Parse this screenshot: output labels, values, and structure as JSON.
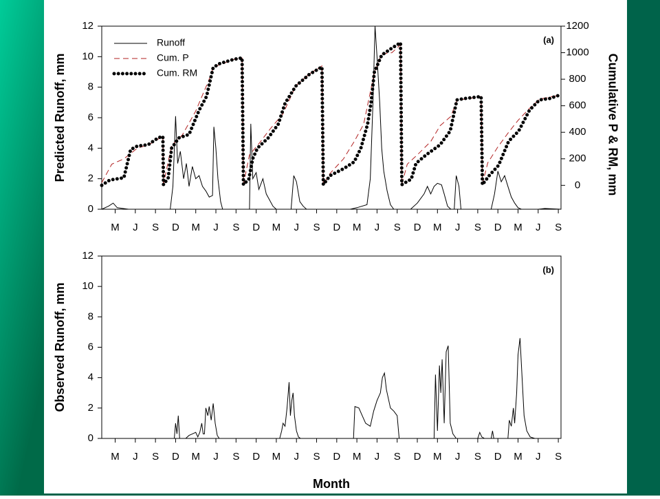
{
  "chart_data": [
    {
      "type": "line",
      "ylabel": "Predicted Runoff, mm",
      "y2label": "Cumulative P & RM, mm",
      "annotation": "(a)",
      "xlim": [
        0,
        68.4
      ],
      "xticks": [
        {
          "value": 2,
          "label": "M"
        },
        {
          "value": 5,
          "label": "J"
        },
        {
          "value": 8,
          "label": "S"
        },
        {
          "value": 11,
          "label": "D"
        },
        {
          "value": 14,
          "label": "M"
        },
        {
          "value": 17,
          "label": "J"
        },
        {
          "value": 20,
          "label": "S"
        },
        {
          "value": 23,
          "label": "D"
        },
        {
          "value": 26,
          "label": "M"
        },
        {
          "value": 29,
          "label": "J"
        },
        {
          "value": 32,
          "label": "S"
        },
        {
          "value": 35,
          "label": "D"
        },
        {
          "value": 38,
          "label": "M"
        },
        {
          "value": 41,
          "label": "J"
        },
        {
          "value": 44,
          "label": "S"
        },
        {
          "value": 47,
          "label": "D"
        },
        {
          "value": 50,
          "label": "M"
        },
        {
          "value": 53,
          "label": "J"
        },
        {
          "value": 56,
          "label": "S"
        },
        {
          "value": 59,
          "label": "D"
        },
        {
          "value": 62,
          "label": "M"
        },
        {
          "value": 65,
          "label": "J"
        },
        {
          "value": 68,
          "label": "S"
        }
      ],
      "ylim": [
        0,
        12
      ],
      "yticks": [
        0,
        2,
        4,
        6,
        8,
        10,
        12
      ],
      "y2lim": [
        -180,
        1200
      ],
      "y2ticks": [
        0,
        200,
        400,
        600,
        800,
        1000,
        1200
      ],
      "legend": "upper left",
      "series": [
        {
          "name": "Runoff",
          "color": "#000000",
          "style": "solid",
          "x": [
            0,
            1,
            1.7,
            2.3,
            4,
            10.2,
            10.6,
            11,
            11.3,
            11.7,
            12.2,
            12.6,
            13,
            13.5,
            14,
            14.5,
            15,
            15.5,
            16,
            16.5,
            16.7,
            17,
            17.3,
            17.7,
            18,
            22,
            22.2,
            22.5,
            23,
            23.4,
            24,
            24.5,
            25,
            25.5,
            26,
            28.2,
            28.6,
            29,
            29.5,
            30,
            30.5,
            37,
            38,
            39.5,
            40,
            40.4,
            40.7,
            41,
            41.4,
            41.7,
            42,
            42.5,
            43,
            43.5,
            46,
            47,
            48,
            48.5,
            49,
            49.5,
            50,
            50.6,
            51,
            51.5,
            52,
            52.5,
            52.8,
            53.2,
            53.5,
            58,
            58.5,
            59,
            59.5,
            60,
            60.5,
            61,
            61.5,
            62,
            62.5,
            65,
            66,
            68.4
          ],
          "values": [
            0,
            0.2,
            0.4,
            0.1,
            0,
            0,
            1.5,
            6.1,
            3,
            3.8,
            2,
            3,
            1.5,
            2.8,
            2,
            2.2,
            1.5,
            1.2,
            0.8,
            0.9,
            5.4,
            4,
            2,
            0.5,
            0,
            0,
            5.6,
            2,
            2.4,
            1.3,
            2,
            1,
            0.6,
            0.2,
            0,
            0,
            2.2,
            1.8,
            0.5,
            0.2,
            0,
            0,
            0.1,
            0.3,
            2,
            7,
            12,
            10,
            7,
            4,
            2.5,
            1.2,
            0.3,
            0,
            0,
            0.4,
            1,
            1.5,
            1,
            1.5,
            1.7,
            1.6,
            1,
            0.2,
            0,
            0,
            2.2,
            1.5,
            0,
            0,
            1,
            2.5,
            1.8,
            2.2,
            1.5,
            0.8,
            0.4,
            0.1,
            0,
            0,
            0.05,
            0
          ]
        },
        {
          "name": "Cum. P",
          "color": "#b22222",
          "style": "dashed",
          "axis": "y2",
          "x": [
            0,
            1.5,
            3.3,
            5.3,
            7,
            9.1,
            9.2,
            10.4,
            12,
            14,
            16,
            16.6,
            19.7,
            20.9,
            21.1,
            22,
            23.5,
            25,
            27,
            28.9,
            30.9,
            32.8,
            33,
            34,
            36,
            37.6,
            39,
            40.6,
            41.7,
            43.2,
            44.5,
            44.7,
            45.5,
            47,
            49,
            50.4,
            52,
            52.9,
            56.5,
            56.7,
            57.5,
            59,
            60.6,
            62,
            63.7,
            65.2,
            68.2
          ],
          "values": [
            20,
            160,
            200,
            280,
            306,
            370,
            10,
            300,
            380,
            560,
            800,
            890,
            950,
            960,
            10,
            230,
            320,
            420,
            540,
            750,
            840,
            900,
            10,
            90,
            200,
            330,
            460,
            850,
            990,
            1000,
            1060,
            10,
            160,
            230,
            330,
            450,
            520,
            640,
            670,
            10,
            170,
            290,
            400,
            490,
            580,
            650,
            680
          ]
        },
        {
          "name": "Cum. RM",
          "color": "#000000",
          "style": "dotted",
          "axis": "y2",
          "x": [
            0,
            1.2,
            3.3,
            4.3,
            5.3,
            6.9,
            8.4,
            9.1,
            9.2,
            9.9,
            10.4,
            11.5,
            13,
            14.5,
            15.6,
            16.6,
            17.6,
            19.7,
            20.9,
            21.1,
            21.9,
            22.5,
            23.2,
            24.8,
            26.3,
            27.3,
            28.9,
            30.9,
            32.8,
            33,
            34,
            36,
            37.6,
            38.6,
            39.6,
            40.1,
            40.6,
            41.7,
            43.2,
            44.5,
            44.7,
            46.1,
            46.8,
            48.3,
            50.4,
            51.9,
            52.9,
            54,
            56.5,
            56.7,
            57.7,
            59.1,
            60.6,
            62.1,
            63.7,
            65.2,
            66.7,
            68.2
          ],
          "values": [
            0,
            40,
            57,
            270,
            296,
            306,
            358,
            369,
            5,
            57,
            280,
            358,
            384,
            566,
            670,
            888,
            919,
            950,
            961,
            5,
            47,
            203,
            281,
            358,
            462,
            618,
            748,
            836,
            893,
            5,
            73,
            125,
            177,
            281,
            462,
            618,
            852,
            982,
            1034,
            1075,
            5,
            47,
            166,
            229,
            306,
            410,
            644,
            654,
            670,
            5,
            73,
            151,
            332,
            410,
            566,
            644,
            654,
            680
          ]
        }
      ]
    },
    {
      "type": "line",
      "ylabel": "Observed Runoff, mm",
      "xlabel": "Month",
      "annotation": "(b)",
      "xlim": [
        0,
        68.4
      ],
      "xticks": [
        {
          "value": 2,
          "label": "M"
        },
        {
          "value": 5,
          "label": "J"
        },
        {
          "value": 8,
          "label": "S"
        },
        {
          "value": 11,
          "label": "D"
        },
        {
          "value": 14,
          "label": "M"
        },
        {
          "value": 17,
          "label": "J"
        },
        {
          "value": 20,
          "label": "S"
        },
        {
          "value": 23,
          "label": "D"
        },
        {
          "value": 26,
          "label": "M"
        },
        {
          "value": 29,
          "label": "J"
        },
        {
          "value": 32,
          "label": "S"
        },
        {
          "value": 35,
          "label": "D"
        },
        {
          "value": 38,
          "label": "M"
        },
        {
          "value": 41,
          "label": "J"
        },
        {
          "value": 44,
          "label": "S"
        },
        {
          "value": 47,
          "label": "D"
        },
        {
          "value": 50,
          "label": "M"
        },
        {
          "value": 53,
          "label": "J"
        },
        {
          "value": 56,
          "label": "S"
        },
        {
          "value": 59,
          "label": "D"
        },
        {
          "value": 62,
          "label": "M"
        },
        {
          "value": 65,
          "label": "J"
        },
        {
          "value": 68,
          "label": "S"
        }
      ],
      "ylim": [
        0,
        12
      ],
      "yticks": [
        0,
        2,
        4,
        6,
        8,
        10,
        12
      ],
      "series": [
        {
          "color": "#000000",
          "style": "solid",
          "x": [
            0,
            10.8,
            11,
            11.2,
            11.4,
            11.6,
            12.5,
            13,
            13.5,
            14,
            14.3,
            14.6,
            14.9,
            15.1,
            15.3,
            15.5,
            15.8,
            16,
            16.3,
            16.6,
            16.9,
            17.2,
            17.5,
            26.5,
            26.8,
            27,
            27.3,
            27.6,
            27.9,
            28.1,
            28.3,
            28.5,
            28.7,
            29,
            29.3,
            29.6,
            37.5,
            37.7,
            38.3,
            38.8,
            39.3,
            40,
            40.5,
            41,
            41.5,
            41.8,
            42.1,
            42.4,
            43,
            43.5,
            44,
            44.3,
            49.5,
            49.7,
            50,
            50.3,
            50.5,
            50.7,
            51,
            51.3,
            51.6,
            51.9,
            52.3,
            52.8,
            56,
            56.3,
            56.6,
            57,
            58,
            58.2,
            58.4,
            60.5,
            60.7,
            61,
            61.3,
            61.5,
            61.8,
            62,
            62.3,
            62.6,
            62.9,
            63.3,
            63.8,
            64.5,
            68.4
          ],
          "values": [
            0,
            0,
            1,
            0.3,
            1.5,
            0,
            0,
            0.2,
            0.3,
            0.4,
            0.1,
            0.4,
            1,
            0.3,
            0.3,
            2,
            1.5,
            2.1,
            1.2,
            2.3,
            1,
            0.2,
            0,
            0,
            0.5,
            1,
            0.8,
            2,
            3.7,
            1.5,
            2.5,
            3,
            1.5,
            0.5,
            0.1,
            0,
            0,
            2.1,
            2,
            1.5,
            1,
            0.8,
            1.8,
            2.5,
            3,
            4,
            4.3,
            3.2,
            2,
            1.8,
            1.5,
            0,
            0,
            4.2,
            0.5,
            4.8,
            3,
            5.2,
            1,
            5.7,
            6.1,
            1,
            0.3,
            0,
            0,
            0.4,
            0.1,
            0,
            0,
            0.5,
            0,
            0,
            1.2,
            0.8,
            2,
            1,
            3,
            5.5,
            6.6,
            4,
            1.5,
            0.5,
            0.1,
            0,
            0
          ]
        }
      ]
    }
  ]
}
